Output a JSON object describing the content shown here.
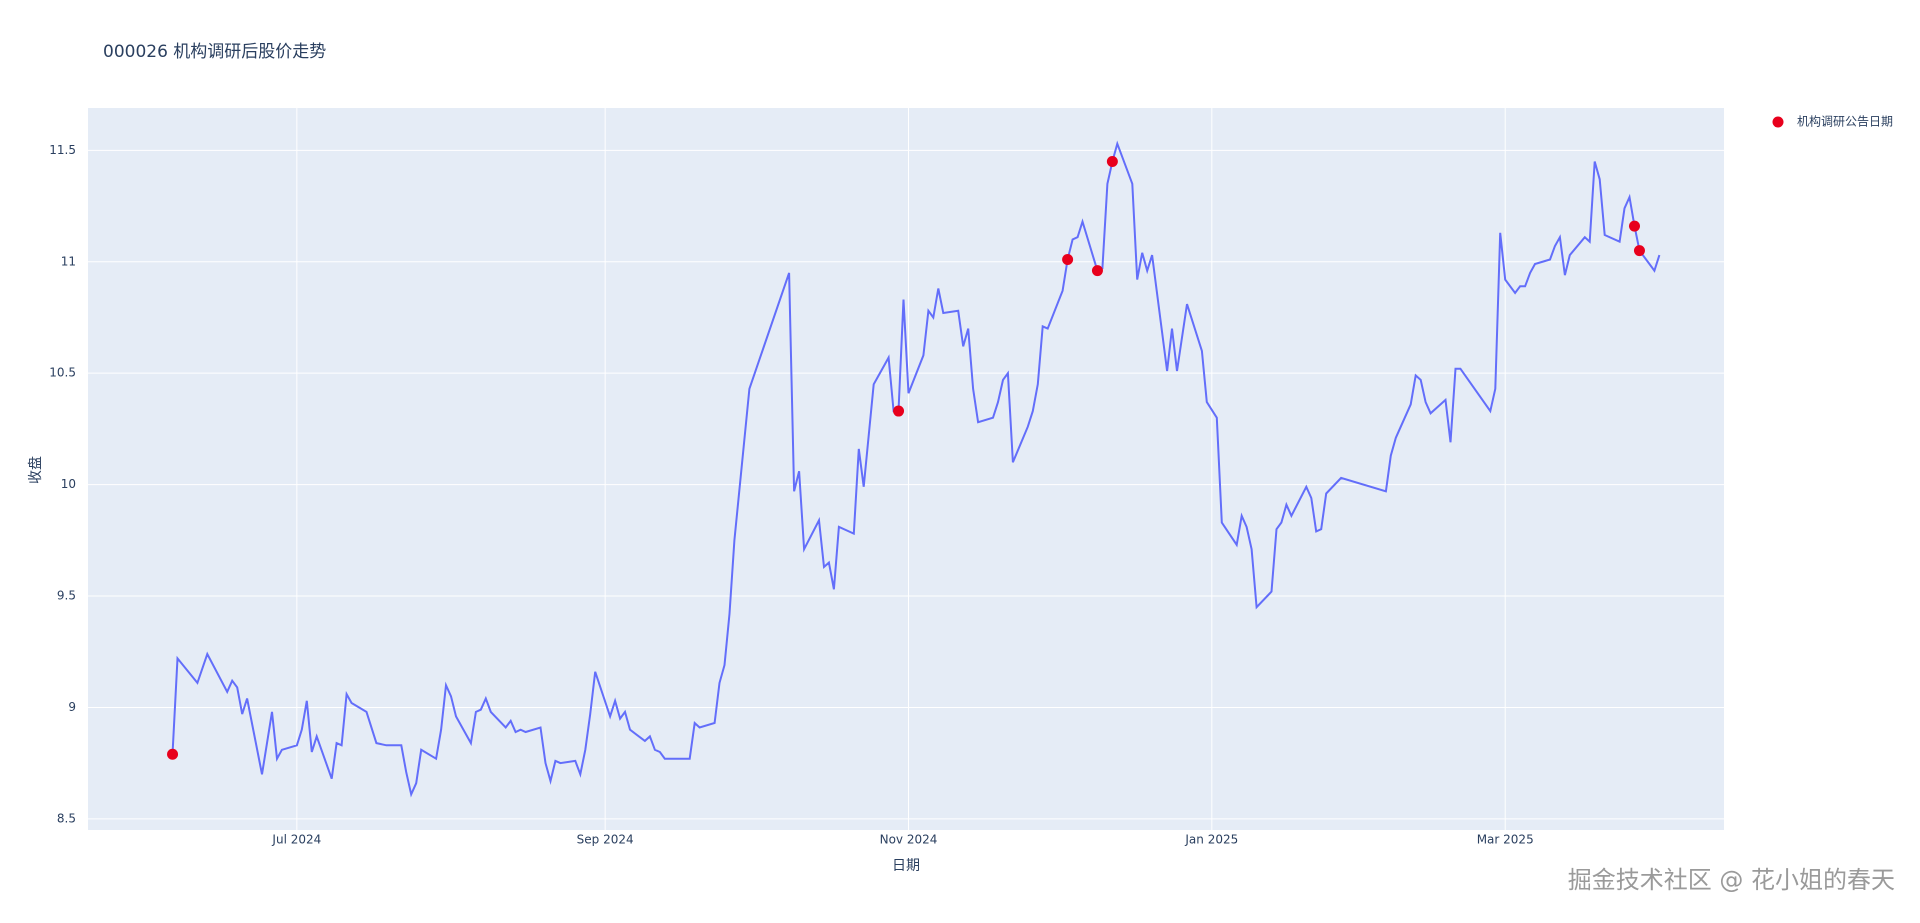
{
  "chart_data": {
    "type": "line",
    "title": "000026 机构调研后股价走势",
    "xlabel": "日期",
    "ylabel": "收盘",
    "watermark": "掘金技术社区 @ 花小姐的春天",
    "xlim": [
      "2024-05-20",
      "2025-04-14"
    ],
    "xticks": [
      {
        "value": "2024-07-01",
        "label": "Jul 2024"
      },
      {
        "value": "2024-09-01",
        "label": "Sep 2024"
      },
      {
        "value": "2024-11-01",
        "label": "Nov 2024"
      },
      {
        "value": "2025-01-01",
        "label": "Jan 2025"
      },
      {
        "value": "2025-03-01",
        "label": "Mar 2025"
      }
    ],
    "ylim": [
      8.45,
      11.69
    ],
    "yticks": [
      8.5,
      9,
      9.5,
      10,
      10.5,
      11,
      11.5
    ],
    "grid": true,
    "legend": "top-right",
    "background": "#e5ecf6",
    "series": [
      {
        "mode": "lines",
        "color": "#636efa",
        "x": [
          "2024-06-06",
          "2024-06-07",
          "2024-06-11",
          "2024-06-13",
          "2024-06-17",
          "2024-06-18",
          "2024-06-19",
          "2024-06-20",
          "2024-06-21",
          "2024-06-24",
          "2024-06-26",
          "2024-06-27",
          "2024-06-28",
          "2024-07-01",
          "2024-07-02",
          "2024-07-03",
          "2024-07-04",
          "2024-07-05",
          "2024-07-08",
          "2024-07-09",
          "2024-07-10",
          "2024-07-11",
          "2024-07-12",
          "2024-07-15",
          "2024-07-17",
          "2024-07-19",
          "2024-07-22",
          "2024-07-23",
          "2024-07-24",
          "2024-07-25",
          "2024-07-26",
          "2024-07-29",
          "2024-07-30",
          "2024-07-31",
          "2024-08-01",
          "2024-08-02",
          "2024-08-05",
          "2024-08-06",
          "2024-08-07",
          "2024-08-08",
          "2024-08-09",
          "2024-08-12",
          "2024-08-13",
          "2024-08-14",
          "2024-08-15",
          "2024-08-16",
          "2024-08-19",
          "2024-08-20",
          "2024-08-21",
          "2024-08-22",
          "2024-08-23",
          "2024-08-26",
          "2024-08-27",
          "2024-08-28",
          "2024-08-29",
          "2024-08-30",
          "2024-09-02",
          "2024-09-03",
          "2024-09-04",
          "2024-09-05",
          "2024-09-06",
          "2024-09-09",
          "2024-09-10",
          "2024-09-11",
          "2024-09-12",
          "2024-09-13",
          "2024-09-18",
          "2024-09-19",
          "2024-09-20",
          "2024-09-23",
          "2024-09-24",
          "2024-09-25",
          "2024-09-26",
          "2024-09-27",
          "2024-09-30",
          "2024-10-08",
          "2024-10-09",
          "2024-10-10",
          "2024-10-11",
          "2024-10-14",
          "2024-10-15",
          "2024-10-16",
          "2024-10-17",
          "2024-10-18",
          "2024-10-21",
          "2024-10-22",
          "2024-10-23",
          "2024-10-25",
          "2024-10-28",
          "2024-10-29",
          "2024-10-30",
          "2024-10-31",
          "2024-11-01",
          "2024-11-04",
          "2024-11-05",
          "2024-11-06",
          "2024-11-07",
          "2024-11-08",
          "2024-11-11",
          "2024-11-12",
          "2024-11-13",
          "2024-11-14",
          "2024-11-15",
          "2024-11-18",
          "2024-11-19",
          "2024-11-20",
          "2024-11-21",
          "2024-11-22",
          "2024-11-25",
          "2024-11-26",
          "2024-11-27",
          "2024-11-28",
          "2024-11-29",
          "2024-12-02",
          "2024-12-03",
          "2024-12-04",
          "2024-12-05",
          "2024-12-06",
          "2024-12-09",
          "2024-12-10",
          "2024-12-11",
          "2024-12-12",
          "2024-12-13",
          "2024-12-16",
          "2024-12-17",
          "2024-12-18",
          "2024-12-19",
          "2024-12-20",
          "2024-12-23",
          "2024-12-24",
          "2024-12-25",
          "2024-12-26",
          "2024-12-27",
          "2024-12-30",
          "2024-12-31",
          "2025-01-02",
          "2025-01-03",
          "2025-01-06",
          "2025-01-07",
          "2025-01-08",
          "2025-01-09",
          "2025-01-10",
          "2025-01-13",
          "2025-01-14",
          "2025-01-15",
          "2025-01-16",
          "2025-01-17",
          "2025-01-20",
          "2025-01-21",
          "2025-01-22",
          "2025-01-23",
          "2025-01-24",
          "2025-01-27",
          "2025-02-05",
          "2025-02-06",
          "2025-02-07",
          "2025-02-10",
          "2025-02-11",
          "2025-02-12",
          "2025-02-13",
          "2025-02-14",
          "2025-02-17",
          "2025-02-18",
          "2025-02-19",
          "2025-02-20",
          "2025-02-26",
          "2025-02-27",
          "2025-02-28",
          "2025-03-01",
          "2025-03-03",
          "2025-03-04",
          "2025-03-05",
          "2025-03-06",
          "2025-03-07",
          "2025-03-10",
          "2025-03-11",
          "2025-03-12",
          "2025-03-13",
          "2025-03-14",
          "2025-03-17",
          "2025-03-18",
          "2025-03-19",
          "2025-03-20",
          "2025-03-21",
          "2025-03-24",
          "2025-03-25",
          "2025-03-26",
          "2025-03-27",
          "2025-03-28",
          "2025-03-31",
          "2025-04-01"
        ],
        "values": [
          8.79,
          9.22,
          9.11,
          9.24,
          9.07,
          9.12,
          9.09,
          8.97,
          9.04,
          8.7,
          8.98,
          8.77,
          8.81,
          8.83,
          8.9,
          9.03,
          8.8,
          8.87,
          8.68,
          8.84,
          8.83,
          9.06,
          9.02,
          8.98,
          8.84,
          8.83,
          8.83,
          8.71,
          8.61,
          8.66,
          8.81,
          8.77,
          8.9,
          9.1,
          9.05,
          8.96,
          8.84,
          8.98,
          8.99,
          9.04,
          8.98,
          8.91,
          8.94,
          8.89,
          8.9,
          8.89,
          8.91,
          8.75,
          8.67,
          8.76,
          8.75,
          8.76,
          8.7,
          8.81,
          8.97,
          9.16,
          8.96,
          9.03,
          8.95,
          8.98,
          8.9,
          8.85,
          8.87,
          8.81,
          8.8,
          8.77,
          8.77,
          8.93,
          8.91,
          8.93,
          9.11,
          9.19,
          9.42,
          9.75,
          10.43,
          10.95,
          9.97,
          10.06,
          9.71,
          9.84,
          9.63,
          9.65,
          9.53,
          9.81,
          9.78,
          10.16,
          9.99,
          10.45,
          10.57,
          10.33,
          10.33,
          10.83,
          10.41,
          10.58,
          10.78,
          10.75,
          10.88,
          10.77,
          10.78,
          10.62,
          10.7,
          10.43,
          10.28,
          10.3,
          10.37,
          10.47,
          10.5,
          10.1,
          10.26,
          10.33,
          10.45,
          10.71,
          10.7,
          10.87,
          11.01,
          11.1,
          11.11,
          11.18,
          10.96,
          10.97,
          11.35,
          11.45,
          11.53,
          11.35,
          10.92,
          11.04,
          10.96,
          11.03,
          10.51,
          10.7,
          10.51,
          10.66,
          10.81,
          10.6,
          10.37,
          10.3,
          9.83,
          9.73,
          9.86,
          9.81,
          9.71,
          9.45,
          9.52,
          9.8,
          9.83,
          9.91,
          9.86,
          9.99,
          9.94,
          9.79,
          9.8,
          9.96,
          10.03,
          9.97,
          10.13,
          10.21,
          10.36,
          10.49,
          10.47,
          10.37,
          10.32,
          10.38,
          10.19,
          10.52,
          10.52,
          10.33,
          10.43,
          11.13,
          10.92,
          10.86,
          10.89,
          10.89,
          10.95,
          10.99,
          11.01,
          11.07,
          11.11,
          10.94,
          11.03,
          11.11,
          11.09,
          11.45,
          11.37,
          11.12,
          11.09,
          11.24,
          11.29,
          11.16,
          11.05,
          10.96,
          11.03
        ]
      },
      {
        "name": "机构调研公告日期",
        "mode": "markers",
        "color": "#e8001c",
        "x": [
          "2024-06-06",
          "2024-10-30",
          "2024-12-03",
          "2024-12-09",
          "2024-12-12",
          "2025-03-27",
          "2025-03-28"
        ],
        "values": [
          8.79,
          10.33,
          11.01,
          10.96,
          11.45,
          11.16,
          11.05
        ]
      }
    ]
  }
}
